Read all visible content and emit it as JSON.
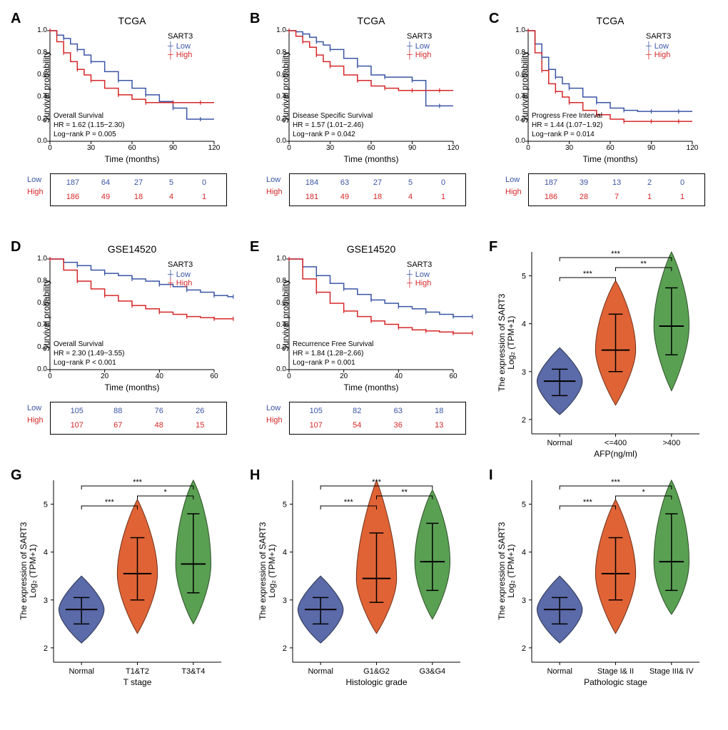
{
  "colors": {
    "low": "#3a55a5",
    "high": "#d62728",
    "violin_normal": "#5b6aa8",
    "violin_mid": "#e06336",
    "violin_high": "#5aa053",
    "violin_stroke_normal": "#2d3654",
    "violin_stroke_mid": "#6e311a",
    "violin_stroke_high": "#2d5028",
    "axis": "#000000",
    "background": "#ffffff"
  },
  "fonts": {
    "panel_label_size": 20,
    "title_size": 14,
    "legend_size": 11,
    "axis_label_size": 12,
    "tick_size": 10,
    "info_size": 10
  },
  "panels": {
    "A": {
      "label": "A",
      "type": "km",
      "title": "TCGA",
      "legend_title": "SART3",
      "legend": [
        "Low",
        "High"
      ],
      "ylabel": "Survival probability",
      "xlabel": "Time (months)",
      "survival_type": "Overall Survival",
      "hr": "HR = 1.62 (1.15−2.30)",
      "p": "Log−rank P = 0.005",
      "xticks": [
        0,
        30,
        60,
        90,
        120
      ],
      "yticks": [
        0.0,
        0.2,
        0.4,
        0.6,
        0.8,
        1.0
      ],
      "low_curve": [
        [
          0,
          1.0
        ],
        [
          5,
          0.96
        ],
        [
          10,
          0.93
        ],
        [
          15,
          0.88
        ],
        [
          20,
          0.83
        ],
        [
          25,
          0.78
        ],
        [
          30,
          0.72
        ],
        [
          40,
          0.63
        ],
        [
          50,
          0.55
        ],
        [
          60,
          0.48
        ],
        [
          70,
          0.42
        ],
        [
          80,
          0.36
        ],
        [
          90,
          0.3
        ],
        [
          100,
          0.2
        ],
        [
          110,
          0.2
        ],
        [
          120,
          0.2
        ]
      ],
      "high_curve": [
        [
          0,
          1.0
        ],
        [
          5,
          0.9
        ],
        [
          10,
          0.8
        ],
        [
          15,
          0.72
        ],
        [
          20,
          0.65
        ],
        [
          25,
          0.6
        ],
        [
          30,
          0.55
        ],
        [
          40,
          0.48
        ],
        [
          50,
          0.42
        ],
        [
          60,
          0.38
        ],
        [
          70,
          0.35
        ],
        [
          80,
          0.35
        ],
        [
          90,
          0.35
        ],
        [
          100,
          0.35
        ],
        [
          110,
          0.35
        ],
        [
          120,
          0.35
        ]
      ],
      "risk": {
        "Low": [
          187,
          64,
          27,
          5,
          0
        ],
        "High": [
          186,
          49,
          18,
          4,
          1
        ]
      }
    },
    "B": {
      "label": "B",
      "type": "km",
      "title": "TCGA",
      "legend_title": "SART3",
      "legend": [
        "Low",
        "High"
      ],
      "ylabel": "Survival probability",
      "xlabel": "Time (months)",
      "survival_type": "Disease Specific Survival",
      "hr": "HR = 1.57 (1.01−2.46)",
      "p": "Log−rank P = 0.042",
      "xticks": [
        0,
        30,
        60,
        90,
        120
      ],
      "yticks": [
        0.0,
        0.2,
        0.4,
        0.6,
        0.8,
        1.0
      ],
      "low_curve": [
        [
          0,
          1.0
        ],
        [
          5,
          0.99
        ],
        [
          10,
          0.97
        ],
        [
          15,
          0.94
        ],
        [
          20,
          0.9
        ],
        [
          25,
          0.87
        ],
        [
          30,
          0.83
        ],
        [
          40,
          0.75
        ],
        [
          50,
          0.68
        ],
        [
          60,
          0.6
        ],
        [
          70,
          0.58
        ],
        [
          80,
          0.58
        ],
        [
          90,
          0.55
        ],
        [
          100,
          0.32
        ],
        [
          110,
          0.32
        ],
        [
          120,
          0.32
        ]
      ],
      "high_curve": [
        [
          0,
          1.0
        ],
        [
          5,
          0.95
        ],
        [
          10,
          0.9
        ],
        [
          15,
          0.85
        ],
        [
          20,
          0.78
        ],
        [
          25,
          0.72
        ],
        [
          30,
          0.68
        ],
        [
          40,
          0.6
        ],
        [
          50,
          0.55
        ],
        [
          60,
          0.5
        ],
        [
          70,
          0.48
        ],
        [
          80,
          0.46
        ],
        [
          90,
          0.46
        ],
        [
          100,
          0.46
        ],
        [
          110,
          0.46
        ],
        [
          120,
          0.46
        ]
      ],
      "risk": {
        "Low": [
          184,
          63,
          27,
          5,
          0
        ],
        "High": [
          181,
          49,
          18,
          4,
          1
        ]
      }
    },
    "C": {
      "label": "C",
      "type": "km",
      "title": "TCGA",
      "legend_title": "SART3",
      "legend": [
        "Low",
        "High"
      ],
      "ylabel": "Survival probability",
      "xlabel": "Time (months)",
      "survival_type": "Progress Free Interval",
      "hr": "HR = 1.44 (1.07−1.92)",
      "p": "Log−rank P = 0.014",
      "xticks": [
        0,
        30,
        60,
        90,
        120
      ],
      "yticks": [
        0.0,
        0.2,
        0.4,
        0.6,
        0.8,
        1.0
      ],
      "low_curve": [
        [
          0,
          1.0
        ],
        [
          5,
          0.88
        ],
        [
          10,
          0.76
        ],
        [
          15,
          0.65
        ],
        [
          20,
          0.58
        ],
        [
          25,
          0.52
        ],
        [
          30,
          0.48
        ],
        [
          40,
          0.4
        ],
        [
          50,
          0.35
        ],
        [
          60,
          0.3
        ],
        [
          70,
          0.28
        ],
        [
          80,
          0.27
        ],
        [
          90,
          0.27
        ],
        [
          100,
          0.27
        ],
        [
          110,
          0.27
        ],
        [
          120,
          0.27
        ]
      ],
      "high_curve": [
        [
          0,
          1.0
        ],
        [
          5,
          0.8
        ],
        [
          10,
          0.64
        ],
        [
          15,
          0.52
        ],
        [
          20,
          0.45
        ],
        [
          25,
          0.4
        ],
        [
          30,
          0.35
        ],
        [
          40,
          0.28
        ],
        [
          50,
          0.24
        ],
        [
          60,
          0.2
        ],
        [
          70,
          0.18
        ],
        [
          80,
          0.18
        ],
        [
          90,
          0.18
        ],
        [
          100,
          0.18
        ],
        [
          110,
          0.18
        ],
        [
          120,
          0.18
        ]
      ],
      "risk": {
        "Low": [
          187,
          39,
          13,
          2,
          0
        ],
        "High": [
          186,
          28,
          7,
          1,
          1
        ]
      }
    },
    "D": {
      "label": "D",
      "type": "km",
      "title": "GSE14520",
      "legend_title": "SART3",
      "legend": [
        "Low",
        "High"
      ],
      "ylabel": "Survival probability",
      "xlabel": "Time (months)",
      "survival_type": "Overall Survival",
      "hr": "HR = 2.30 (1.49−3.55)",
      "p": "Log−rank P < 0.001",
      "xticks": [
        0,
        20,
        40,
        60
      ],
      "yticks": [
        0.0,
        0.2,
        0.4,
        0.6,
        0.8,
        1.0
      ],
      "low_curve": [
        [
          0,
          1.0
        ],
        [
          5,
          0.97
        ],
        [
          10,
          0.94
        ],
        [
          15,
          0.9
        ],
        [
          20,
          0.87
        ],
        [
          25,
          0.85
        ],
        [
          30,
          0.82
        ],
        [
          35,
          0.8
        ],
        [
          40,
          0.77
        ],
        [
          45,
          0.75
        ],
        [
          50,
          0.72
        ],
        [
          55,
          0.7
        ],
        [
          60,
          0.67
        ],
        [
          65,
          0.66
        ],
        [
          67,
          0.66
        ]
      ],
      "high_curve": [
        [
          0,
          1.0
        ],
        [
          5,
          0.9
        ],
        [
          10,
          0.8
        ],
        [
          15,
          0.73
        ],
        [
          20,
          0.67
        ],
        [
          25,
          0.62
        ],
        [
          30,
          0.58
        ],
        [
          35,
          0.55
        ],
        [
          40,
          0.52
        ],
        [
          45,
          0.5
        ],
        [
          50,
          0.48
        ],
        [
          55,
          0.47
        ],
        [
          60,
          0.46
        ],
        [
          65,
          0.46
        ],
        [
          67,
          0.46
        ]
      ],
      "risk": {
        "Low": [
          105,
          88,
          76,
          26
        ],
        "High": [
          107,
          67,
          48,
          15
        ]
      }
    },
    "E": {
      "label": "E",
      "type": "km",
      "title": "GSE14520",
      "legend_title": "SART3",
      "legend": [
        "Low",
        "High"
      ],
      "ylabel": "Survival probability",
      "xlabel": "Time (months)",
      "survival_type": "Recurrence Free Survival",
      "hr": "HR = 1.84 (1.28−2.66)",
      "p": "Log−rank P = 0.001",
      "xticks": [
        0,
        20,
        40,
        60
      ],
      "yticks": [
        0.0,
        0.2,
        0.4,
        0.6,
        0.8,
        1.0
      ],
      "low_curve": [
        [
          0,
          1.0
        ],
        [
          5,
          0.93
        ],
        [
          10,
          0.85
        ],
        [
          15,
          0.78
        ],
        [
          20,
          0.73
        ],
        [
          25,
          0.68
        ],
        [
          30,
          0.63
        ],
        [
          35,
          0.6
        ],
        [
          40,
          0.57
        ],
        [
          45,
          0.55
        ],
        [
          50,
          0.52
        ],
        [
          55,
          0.5
        ],
        [
          60,
          0.48
        ],
        [
          65,
          0.48
        ],
        [
          67,
          0.48
        ]
      ],
      "high_curve": [
        [
          0,
          1.0
        ],
        [
          5,
          0.82
        ],
        [
          10,
          0.7
        ],
        [
          15,
          0.6
        ],
        [
          20,
          0.53
        ],
        [
          25,
          0.48
        ],
        [
          30,
          0.44
        ],
        [
          35,
          0.41
        ],
        [
          40,
          0.38
        ],
        [
          45,
          0.36
        ],
        [
          50,
          0.35
        ],
        [
          55,
          0.34
        ],
        [
          60,
          0.33
        ],
        [
          65,
          0.33
        ],
        [
          67,
          0.33
        ]
      ],
      "risk": {
        "Low": [
          105,
          82,
          63,
          18
        ],
        "High": [
          107,
          54,
          36,
          13
        ]
      }
    },
    "F": {
      "label": "F",
      "type": "violin",
      "ylabel": "The expression of SART3",
      "ylabel2": "Log₂ (TPM+1)",
      "xlabel": "AFP(ng/ml)",
      "yticks": [
        2,
        3,
        4,
        5
      ],
      "ylim": [
        1.7,
        5.5
      ],
      "categories": [
        "Normal",
        "<=400",
        ">400"
      ],
      "violins": [
        {
          "median": 2.8,
          "q1": 2.5,
          "q3": 3.05,
          "min": 2.1,
          "max": 3.5,
          "width": 0.45
        },
        {
          "median": 3.45,
          "q1": 3.0,
          "q3": 4.2,
          "min": 2.3,
          "max": 4.9,
          "width": 0.4
        },
        {
          "median": 3.95,
          "q1": 3.35,
          "q3": 4.75,
          "min": 2.6,
          "max": 5.5,
          "width": 0.35
        }
      ],
      "sig": [
        [
          "***",
          0,
          1
        ],
        [
          "***",
          0,
          2
        ],
        [
          "**",
          1,
          2
        ]
      ]
    },
    "G": {
      "label": "G",
      "type": "violin",
      "ylabel": "The expression of SART3",
      "ylabel2": "Log₂ (TPM+1)",
      "xlabel": "T stage",
      "yticks": [
        2,
        3,
        4,
        5
      ],
      "ylim": [
        1.7,
        5.5
      ],
      "categories": [
        "Normal",
        "T1&T2",
        "T3&T4"
      ],
      "violins": [
        {
          "median": 2.8,
          "q1": 2.5,
          "q3": 3.05,
          "min": 2.1,
          "max": 3.5,
          "width": 0.45
        },
        {
          "median": 3.55,
          "q1": 3.0,
          "q3": 4.3,
          "min": 2.3,
          "max": 5.1,
          "width": 0.4
        },
        {
          "median": 3.75,
          "q1": 3.15,
          "q3": 4.8,
          "min": 2.5,
          "max": 5.5,
          "width": 0.35
        }
      ],
      "sig": [
        [
          "***",
          0,
          1
        ],
        [
          "***",
          0,
          2
        ],
        [
          "*",
          1,
          2
        ]
      ]
    },
    "H": {
      "label": "H",
      "type": "violin",
      "ylabel": "The expression of SART3",
      "ylabel2": "Log₂ (TPM+1)",
      "xlabel": "Histologic grade",
      "yticks": [
        2,
        3,
        4,
        5
      ],
      "ylim": [
        1.7,
        5.5
      ],
      "categories": [
        "Normal",
        "G1&G2",
        "G3&G4"
      ],
      "violins": [
        {
          "median": 2.8,
          "q1": 2.5,
          "q3": 3.05,
          "min": 2.1,
          "max": 3.5,
          "width": 0.45
        },
        {
          "median": 3.45,
          "q1": 2.95,
          "q3": 4.4,
          "min": 2.3,
          "max": 5.5,
          "width": 0.4
        },
        {
          "median": 3.8,
          "q1": 3.2,
          "q3": 4.6,
          "min": 2.6,
          "max": 5.3,
          "width": 0.35
        }
      ],
      "sig": [
        [
          "***",
          0,
          1
        ],
        [
          "***",
          0,
          2
        ],
        [
          "**",
          1,
          2
        ]
      ]
    },
    "I": {
      "label": "I",
      "type": "violin",
      "ylabel": "The expression of SART3",
      "ylabel2": "Log₂ (TPM+1)",
      "xlabel": "Pathologic stage",
      "yticks": [
        2,
        3,
        4,
        5
      ],
      "ylim": [
        1.7,
        5.5
      ],
      "categories": [
        "Normal",
        "Stage I& II",
        "Stage III& IV"
      ],
      "violins": [
        {
          "median": 2.8,
          "q1": 2.5,
          "q3": 3.05,
          "min": 2.1,
          "max": 3.5,
          "width": 0.45
        },
        {
          "median": 3.55,
          "q1": 3.0,
          "q3": 4.3,
          "min": 2.3,
          "max": 5.1,
          "width": 0.4
        },
        {
          "median": 3.8,
          "q1": 3.2,
          "q3": 4.8,
          "min": 2.7,
          "max": 5.5,
          "width": 0.35
        }
      ],
      "sig": [
        [
          "***",
          0,
          1
        ],
        [
          "***",
          0,
          2
        ],
        [
          "*",
          1,
          2
        ]
      ]
    }
  }
}
